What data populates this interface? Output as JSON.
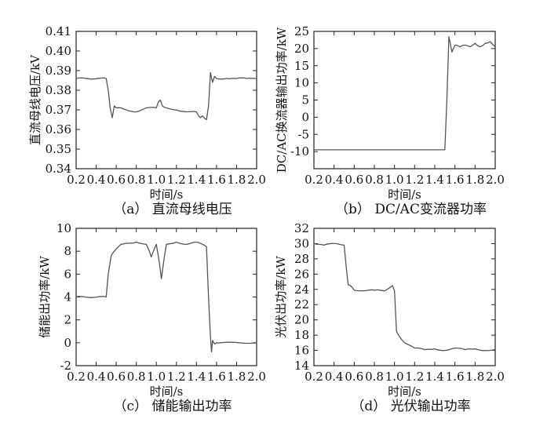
{
  "chart_data": [
    {
      "id": "a",
      "type": "line",
      "caption": "（a）  直流母线电压",
      "xlabel": "时间/s",
      "ylabel": "直流母线电压/kV",
      "xlim": [
        0.2,
        2.0
      ],
      "ylim": [
        0.34,
        0.41
      ],
      "xticks": [
        0.2,
        0.4,
        0.6,
        0.8,
        1.0,
        1.2,
        1.4,
        1.6,
        1.8,
        2.0
      ],
      "xtick_labels": [
        "0.2",
        "0.4",
        "0.6",
        "0.8",
        "1.0",
        "1.2",
        "1.4",
        "1.6",
        "1.8",
        "2.0"
      ],
      "yticks": [
        0.34,
        0.35,
        0.36,
        0.37,
        0.38,
        0.39,
        0.4,
        0.41
      ],
      "ytick_labels": [
        "0.34",
        "0.35",
        "0.36",
        "0.37",
        "0.38",
        "0.39",
        "0.40",
        "0.41"
      ],
      "grid": false,
      "series": [
        {
          "x": [
            0.2,
            0.5,
            0.52,
            0.54,
            0.56,
            0.58,
            0.6,
            0.65,
            0.7,
            0.8,
            0.9,
            1.0,
            1.02,
            1.04,
            1.06,
            1.1,
            1.2,
            1.3,
            1.4,
            1.42,
            1.44,
            1.46,
            1.5,
            1.52,
            1.54,
            1.56,
            1.58,
            1.6,
            1.7,
            1.8,
            1.9,
            2.0
          ],
          "y": [
            0.386,
            0.386,
            0.38,
            0.371,
            0.366,
            0.372,
            0.371,
            0.371,
            0.37,
            0.369,
            0.371,
            0.371,
            0.374,
            0.375,
            0.372,
            0.371,
            0.37,
            0.369,
            0.369,
            0.367,
            0.366,
            0.367,
            0.365,
            0.372,
            0.389,
            0.384,
            0.387,
            0.386,
            0.386,
            0.386,
            0.386,
            0.386
          ]
        }
      ]
    },
    {
      "id": "b",
      "type": "line",
      "caption": "（b）  DC/AC变流器功率",
      "xlabel": "时间/s",
      "ylabel": "DC/AC换流器输出功率/kW",
      "xlim": [
        0.2,
        2.0
      ],
      "ylim": [
        -15,
        25
      ],
      "xticks": [
        0.2,
        0.4,
        0.6,
        0.8,
        1.0,
        1.2,
        1.4,
        1.6,
        1.8,
        2.0
      ],
      "xtick_labels": [
        "0.2",
        "0.4",
        "0.6",
        "0.8",
        "1.0",
        "1.2",
        "1.4",
        "1.6",
        "1.8",
        "2.0"
      ],
      "yticks": [
        -10,
        -5,
        0,
        5,
        10,
        15,
        20,
        25
      ],
      "ytick_labels": [
        "-10",
        "-5",
        "0",
        "5",
        "10",
        "15",
        "20",
        "25"
      ],
      "grid": false,
      "series": [
        {
          "x": [
            0.2,
            1.5,
            1.52,
            1.54,
            1.55,
            1.57,
            1.6,
            1.65,
            1.7,
            1.75,
            1.8,
            1.85,
            1.9,
            1.95,
            2.0
          ],
          "y": [
            -9.5,
            -9.5,
            5,
            23.5,
            22,
            19,
            21,
            20.5,
            21,
            20.5,
            21.5,
            20.5,
            21.5,
            22,
            20.5
          ]
        }
      ]
    },
    {
      "id": "c",
      "type": "line",
      "caption": "（c）  储能输出功率",
      "xlabel": "时间/s",
      "ylabel": "储能出功率/kW",
      "xlim": [
        0.2,
        2.0
      ],
      "ylim": [
        -2,
        10
      ],
      "xticks": [
        0.2,
        0.4,
        0.6,
        0.8,
        1.0,
        1.2,
        1.4,
        1.6,
        1.8,
        2.0
      ],
      "xtick_labels": [
        "0.2",
        "0.4",
        "0.6",
        "0.8",
        "1.0",
        "1.2",
        "1.4",
        "1.6",
        "1.8",
        "2.0"
      ],
      "yticks": [
        -2,
        0,
        2,
        4,
        6,
        8,
        10
      ],
      "ytick_labels": [
        "-2",
        "0",
        "2",
        "4",
        "6",
        "8",
        "10"
      ],
      "grid": false,
      "series": [
        {
          "x": [
            0.2,
            0.5,
            0.52,
            0.55,
            0.6,
            0.65,
            0.7,
            0.8,
            0.9,
            0.93,
            0.95,
            0.97,
            1.0,
            1.03,
            1.05,
            1.08,
            1.1,
            1.2,
            1.3,
            1.4,
            1.5,
            1.52,
            1.54,
            1.55,
            1.56,
            1.58,
            1.6,
            2.0
          ],
          "y": [
            4,
            4,
            6,
            7.6,
            8.2,
            8.6,
            8.7,
            8.8,
            8.6,
            8,
            7.5,
            8,
            8.6,
            7,
            5.6,
            7.5,
            8.6,
            8.8,
            8.6,
            8.8,
            8.4,
            4,
            0.5,
            -0.8,
            0.2,
            -0.1,
            0,
            0
          ]
        }
      ]
    },
    {
      "id": "d",
      "type": "line",
      "caption": "（d）  光伏输出功率",
      "xlabel": "时间/s",
      "ylabel": "光伏出功率/kW",
      "xlim": [
        0.2,
        2.0
      ],
      "ylim": [
        14,
        32
      ],
      "xticks": [
        0.2,
        0.4,
        0.6,
        0.8,
        1.0,
        1.2,
        1.4,
        1.6,
        1.8,
        2.0
      ],
      "xtick_labels": [
        "0.2",
        "0.4",
        "0.6",
        "0.8",
        "1.0",
        "1.2",
        "1.4",
        "1.6",
        "1.8",
        "2.0"
      ],
      "yticks": [
        14,
        16,
        18,
        20,
        22,
        24,
        26,
        28,
        30,
        32
      ],
      "ytick_labels": [
        "14",
        "16",
        "18",
        "20",
        "22",
        "24",
        "26",
        "28",
        "30",
        "32"
      ],
      "grid": false,
      "series": [
        {
          "x": [
            0.2,
            0.3,
            0.4,
            0.5,
            0.52,
            0.54,
            0.56,
            0.6,
            0.7,
            0.8,
            0.9,
            0.95,
            0.98,
            1.0,
            1.02,
            1.05,
            1.1,
            1.2,
            1.3,
            1.4,
            1.5,
            1.6,
            1.7,
            1.8,
            1.9,
            2.0
          ],
          "y": [
            30,
            29.8,
            30,
            29.8,
            27,
            24.6,
            24.5,
            23.9,
            23.8,
            23.9,
            23.8,
            24.2,
            24.5,
            23.8,
            18.5,
            17.8,
            17,
            16.3,
            16.1,
            16.2,
            16,
            16.3,
            16.1,
            16.2,
            16,
            16.1
          ]
        }
      ]
    }
  ]
}
